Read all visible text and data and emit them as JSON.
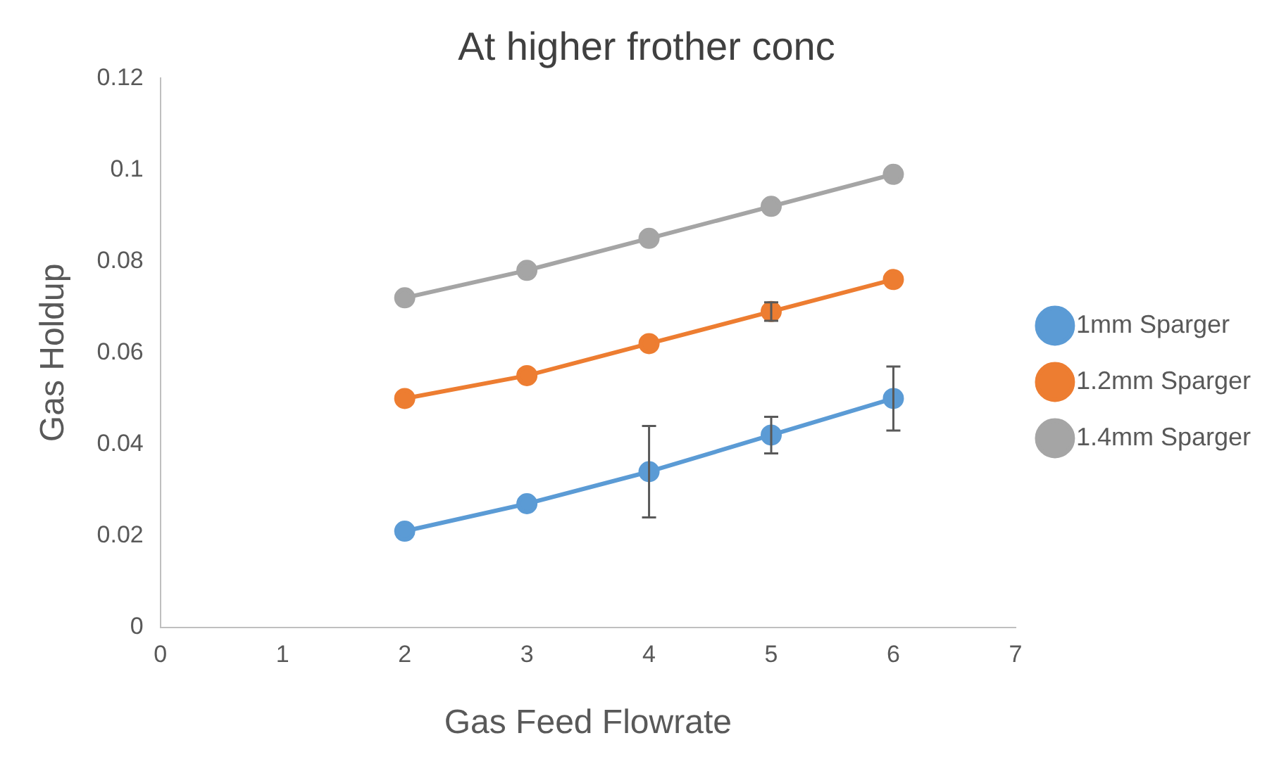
{
  "chart_data": {
    "type": "line",
    "title": "At higher frother conc",
    "xlabel": "Gas Feed Flowrate",
    "ylabel": "Gas Holdup",
    "x": [
      2,
      3,
      4,
      5,
      6
    ],
    "series": [
      {
        "name": "1mm Sparger",
        "color": "#5b9bd5",
        "values": [
          0.021,
          0.027,
          0.034,
          0.042,
          0.05
        ],
        "errors": [
          null,
          null,
          0.01,
          0.004,
          0.007
        ]
      },
      {
        "name": "1.2mm Sparger",
        "color": "#ed7d31",
        "values": [
          0.05,
          0.055,
          0.062,
          0.069,
          0.076
        ],
        "errors": [
          null,
          null,
          null,
          0.002,
          null
        ]
      },
      {
        "name": "1.4mm Sparger",
        "color": "#a5a5a5",
        "values": [
          0.072,
          0.078,
          0.085,
          0.092,
          0.099
        ]
      }
    ],
    "xlim": [
      0,
      7
    ],
    "xticks": [
      0,
      1,
      2,
      3,
      4,
      5,
      6,
      7
    ],
    "ylim": [
      0,
      0.12
    ],
    "yticks": [
      0,
      0.02,
      0.04,
      0.06,
      0.08,
      0.1,
      0.12
    ],
    "grid": false,
    "legend": "right",
    "marker": "circle",
    "line_style": "solid"
  }
}
